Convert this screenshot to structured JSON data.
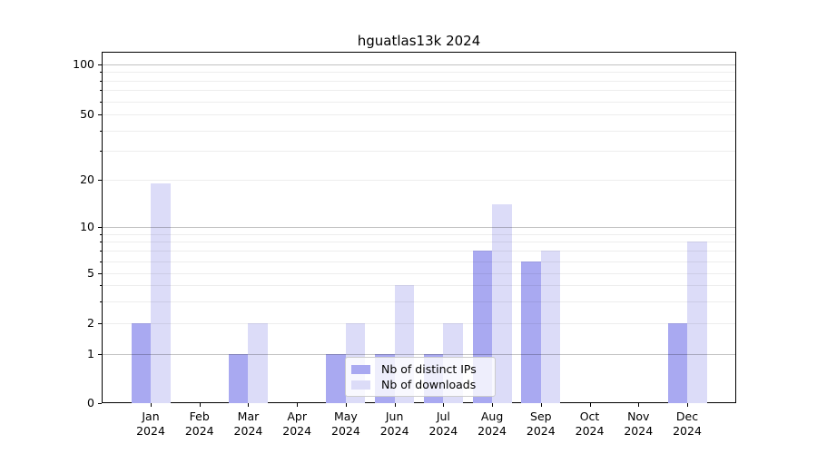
{
  "chart_data": {
    "type": "bar",
    "title": "hguatlas13k 2024",
    "categories": [
      "Jan",
      "Feb",
      "Mar",
      "Apr",
      "May",
      "Jun",
      "Jul",
      "Aug",
      "Sep",
      "Oct",
      "Nov",
      "Dec"
    ],
    "category_year": "2024",
    "series": [
      {
        "name": "Nb of distinct IPs",
        "color": "#a9a9f1",
        "values": [
          2,
          0,
          1,
          0,
          1,
          1,
          1,
          7,
          6,
          0,
          0,
          2
        ]
      },
      {
        "name": "Nb of downloads",
        "color": "#dcdcf8",
        "values": [
          19,
          0,
          2,
          0,
          2,
          4,
          2,
          14,
          7,
          0,
          0,
          8
        ]
      }
    ],
    "yscale": "log-with-zero",
    "ytick_labels": [
      0,
      1,
      2,
      5,
      10,
      20,
      50,
      100
    ],
    "ylim": [
      0,
      120
    ],
    "grid": "major+minor horizontal",
    "legend_position": "lower center"
  }
}
